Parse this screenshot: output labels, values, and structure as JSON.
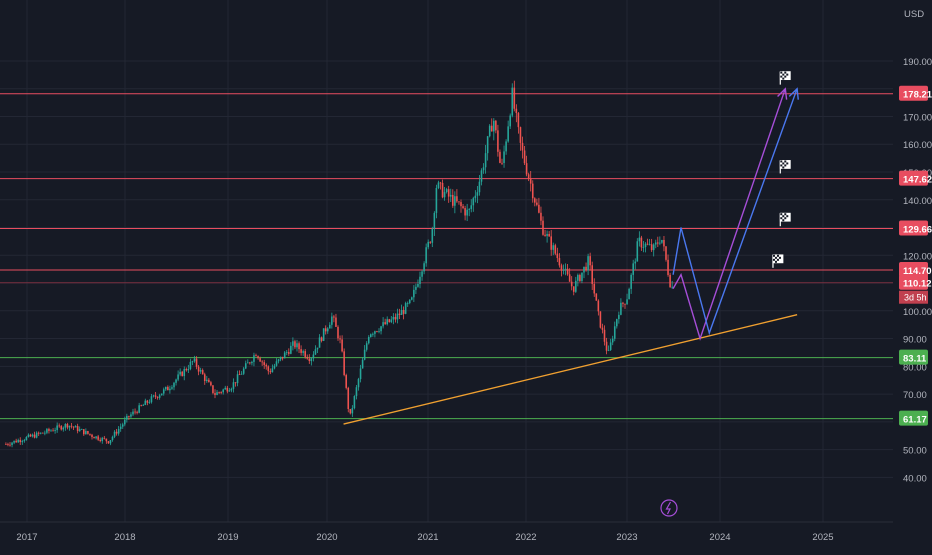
{
  "chart_data": {
    "type": "candlestick",
    "currency_label": "USD",
    "colors": {
      "background": "#161a25",
      "grid": "#232734",
      "up": "#26a69a",
      "down": "#ef5350",
      "resistance": "#e84d60",
      "support": "#4caf50",
      "trendline": "#f0a030",
      "path_purple": "#a64ed8",
      "path_blue": "#4a78f0",
      "axis_text": "#b2b5be"
    },
    "y_ticks": [
      "190.00",
      "170.00",
      "160.00",
      "150.00",
      "140.00",
      "120.00",
      "100.00",
      "90.00",
      "80.00",
      "70.00",
      "50.00",
      "40.00"
    ],
    "x_ticks": [
      "2017",
      "2018",
      "2019",
      "2020",
      "2021",
      "2022",
      "2023",
      "2024",
      "2025"
    ],
    "price_tags": [
      {
        "label": "178.21",
        "value": 178.21,
        "kind": "resistance",
        "color": "#e84d60"
      },
      {
        "label": "147.62",
        "value": 147.62,
        "kind": "resistance",
        "color": "#e84d60"
      },
      {
        "label": "129.66",
        "value": 129.66,
        "kind": "resistance",
        "color": "#e84d60"
      },
      {
        "label": "114.70",
        "value": 114.7,
        "kind": "resistance",
        "color": "#e84d60"
      },
      {
        "label": "110.12",
        "value": 110.12,
        "kind": "last_price",
        "color": "#e84d60"
      },
      {
        "label": "83.11",
        "value": 83.11,
        "kind": "support",
        "color": "#4caf50"
      },
      {
        "label": "61.17",
        "value": 61.17,
        "kind": "support",
        "color": "#4caf50"
      }
    ],
    "countdown": "3d 5h",
    "keypoints": [
      [
        "2016-10-15",
        52
      ],
      [
        "2017-03-01",
        56
      ],
      [
        "2017-06-01",
        59
      ],
      [
        "2017-09-01",
        55
      ],
      [
        "2017-11-01",
        53
      ],
      [
        "2018-01-15",
        62
      ],
      [
        "2018-04-01",
        68
      ],
      [
        "2018-06-01",
        72
      ],
      [
        "2018-09-01",
        82
      ],
      [
        "2018-11-15",
        70
      ],
      [
        "2019-01-15",
        73
      ],
      [
        "2019-04-15",
        85
      ],
      [
        "2019-06-01",
        78
      ],
      [
        "2019-09-01",
        88
      ],
      [
        "2019-11-01",
        83
      ],
      [
        "2020-01-20",
        98
      ],
      [
        "2020-02-20",
        88
      ],
      [
        "2020-03-23",
        61
      ],
      [
        "2020-06-01",
        92
      ],
      [
        "2020-09-01",
        97
      ],
      [
        "2020-11-01",
        103
      ],
      [
        "2021-01-15",
        128
      ],
      [
        "2021-02-01",
        145
      ],
      [
        "2021-04-01",
        140
      ],
      [
        "2021-06-01",
        135
      ],
      [
        "2021-07-15",
        148
      ],
      [
        "2021-09-01",
        170
      ],
      [
        "2021-10-01",
        150
      ],
      [
        "2021-11-10",
        178
      ],
      [
        "2021-12-10",
        160
      ],
      [
        "2022-01-20",
        145
      ],
      [
        "2022-03-01",
        130
      ],
      [
        "2022-05-01",
        118
      ],
      [
        "2022-06-20",
        108
      ],
      [
        "2022-08-15",
        118
      ],
      [
        "2022-09-20",
        98
      ],
      [
        "2022-10-25",
        84
      ],
      [
        "2022-12-01",
        100
      ],
      [
        "2023-01-01",
        105
      ],
      [
        "2023-02-15",
        125
      ],
      [
        "2023-04-15",
        122
      ],
      [
        "2023-05-15",
        127
      ],
      [
        "2023-06-20",
        110
      ],
      [
        "2023-07-05",
        107
      ]
    ],
    "trendline": [
      [
        "2020-03-01",
        59.2
      ],
      [
        "2024-10-01",
        98.6
      ]
    ],
    "path_blue": [
      [
        "2023-07-01",
        113
      ],
      [
        "2023-08-01",
        130
      ],
      [
        "2023-11-20",
        92
      ],
      [
        "2024-10-01",
        180
      ]
    ],
    "path_purple": [
      [
        "2023-07-01",
        108
      ],
      [
        "2023-08-01",
        113
      ],
      [
        "2023-10-15",
        90
      ],
      [
        "2024-08-20",
        180
      ]
    ],
    "flags": [
      {
        "date": "2024-08-20",
        "value": 184
      },
      {
        "date": "2024-08-20",
        "value": 152
      },
      {
        "date": "2024-08-20",
        "value": 133
      },
      {
        "date": "2024-07-25",
        "value": 118
      }
    ]
  }
}
